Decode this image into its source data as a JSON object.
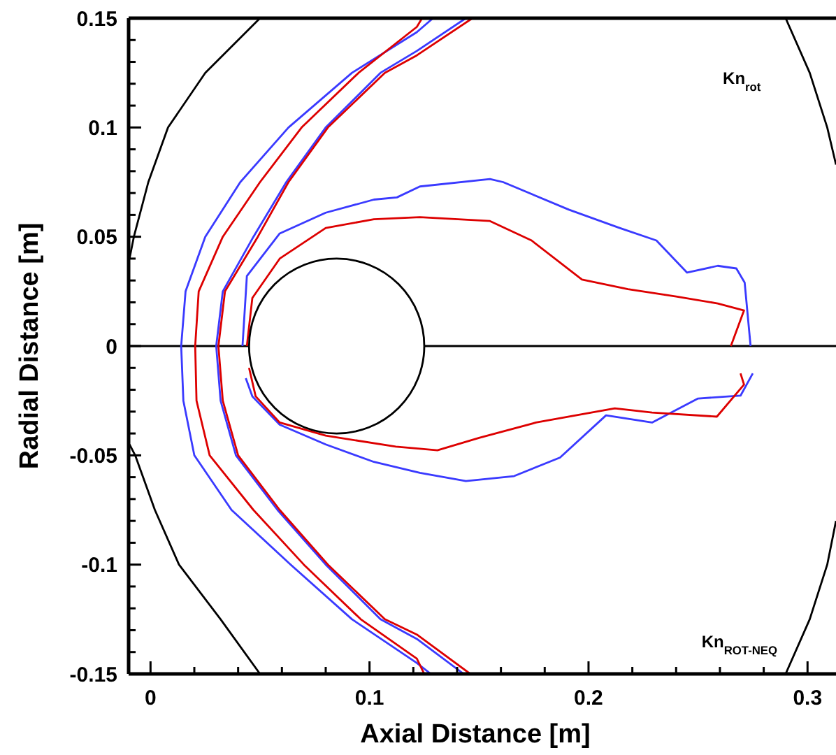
{
  "chart_data": {
    "type": "line",
    "xlabel": "Axial Distance [m]",
    "ylabel": "Radial Distance [m]",
    "xlim": [
      -0.01,
      0.313
    ],
    "ylim": [
      -0.15,
      0.15
    ],
    "xticks": [
      0,
      {
        "value": 0.02,
        "label": null
      },
      {
        "value": 0.04,
        "label": null
      },
      {
        "value": 0.06,
        "label": null
      },
      {
        "value": 0.08,
        "label": null
      },
      0.1,
      {
        "value": 0.12,
        "label": null
      },
      {
        "value": 0.14,
        "label": null
      },
      {
        "value": 0.16,
        "label": null
      },
      {
        "value": 0.18,
        "label": null
      },
      0.2,
      {
        "value": 0.22,
        "label": null
      },
      {
        "value": 0.24,
        "label": null
      },
      {
        "value": 0.26,
        "label": null
      },
      {
        "value": 0.28,
        "label": null
      },
      0.3
    ],
    "yticks": [
      -0.15,
      {
        "value": -0.14,
        "label": null
      },
      {
        "value": -0.13,
        "label": null
      },
      {
        "value": -0.12,
        "label": null
      },
      {
        "value": -0.11,
        "label": null
      },
      -0.1,
      {
        "value": -0.09,
        "label": null
      },
      {
        "value": -0.08,
        "label": null
      },
      {
        "value": -0.07,
        "label": null
      },
      {
        "value": -0.06,
        "label": null
      },
      -0.05,
      {
        "value": -0.04,
        "label": null
      },
      {
        "value": -0.03,
        "label": null
      },
      {
        "value": -0.02,
        "label": null
      },
      {
        "value": -0.01,
        "label": null
      },
      0,
      {
        "value": 0.01,
        "label": null
      },
      {
        "value": 0.02,
        "label": null
      },
      {
        "value": 0.03,
        "label": null
      },
      {
        "value": 0.04,
        "label": null
      },
      0.05,
      {
        "value": 0.06,
        "label": null
      },
      {
        "value": 0.07,
        "label": null
      },
      {
        "value": 0.08,
        "label": null
      },
      {
        "value": 0.09,
        "label": null
      },
      0.1,
      {
        "value": 0.11,
        "label": null
      },
      {
        "value": 0.12,
        "label": null
      },
      {
        "value": 0.13,
        "label": null
      },
      {
        "value": 0.14,
        "label": null
      },
      0.15
    ],
    "grid": false,
    "marker": "none",
    "line_style": "solid",
    "annotations": [
      "Kn$_{rot}$",
      "Kn$_{ROT-NEQ}$"
    ],
    "series": [
      {
        "color": "#000000",
        "x": [
          0.05,
          0.025,
          0.008,
          -0.001,
          -0.0076,
          -0.0096
        ],
        "values": [
          0.15,
          0.125,
          0.1,
          0.075,
          0.05,
          0.04
        ]
      },
      {
        "color": "#000000",
        "x": [
          -0.0096,
          -0.007,
          0.002,
          0.013,
          0.032,
          0.05
        ],
        "values": [
          -0.045,
          -0.05,
          -0.075,
          -0.1,
          -0.125,
          -0.15
        ]
      },
      {
        "color": "#000000",
        "x": [
          0.29,
          0.301,
          0.309,
          0.313
        ],
        "values": [
          0.15,
          0.125,
          0.1,
          0.083
        ]
      },
      {
        "color": "#000000",
        "x": [
          0.313,
          0.309,
          0.301,
          0.29
        ],
        "values": [
          -0.08,
          -0.1,
          -0.125,
          -0.15
        ]
      },
      {
        "color": "#000000",
        "x": [
          -0.01,
          0.045,
          0.085,
          0.125,
          0.313
        ],
        "values": [
          0,
          0,
          null,
          0,
          0
        ]
      },
      {
        "color": "#3a3aff",
        "x": [
          0.129,
          0.1216,
          0.092,
          0.063,
          0.041,
          0.025,
          0.016,
          0.014,
          0.015,
          0.02,
          0.037,
          0.064,
          0.092,
          0.1216,
          0.128
        ],
        "values": [
          0.15,
          0.1436,
          0.125,
          0.1,
          0.075,
          0.05,
          0.025,
          0,
          -0.025,
          -0.05,
          -0.075,
          -0.1,
          -0.125,
          -0.145,
          -0.15
        ]
      },
      {
        "color": "#dd0000",
        "x": [
          0.124,
          0.1216,
          0.095,
          0.069,
          0.05,
          0.033,
          0.022,
          0.0204,
          0.021,
          0.027,
          0.047,
          0.07,
          0.096,
          0.1216,
          0.125
        ],
        "values": [
          0.15,
          0.146,
          0.125,
          0.1,
          0.075,
          0.05,
          0.025,
          0,
          -0.025,
          -0.05,
          -0.075,
          -0.1,
          -0.125,
          -0.143,
          -0.15
        ]
      },
      {
        "color": "#3a3aff",
        "x": [
          0.144,
          0.1216,
          0.105,
          0.08,
          0.062,
          0.047,
          0.033,
          0.03,
          0.032,
          0.039,
          0.058,
          0.08,
          0.105,
          0.1216,
          0.143
        ],
        "values": [
          0.15,
          0.135,
          0.125,
          0.1,
          0.075,
          0.05,
          0.025,
          0,
          -0.025,
          -0.05,
          -0.075,
          -0.1,
          -0.125,
          -0.134,
          -0.15
        ]
      },
      {
        "color": "#dd0000",
        "x": [
          0.147,
          0.1216,
          0.107,
          0.081,
          0.063,
          0.049,
          0.034,
          0.031,
          0.033,
          0.04,
          0.059,
          0.081,
          0.107,
          0.1216,
          0.146
        ],
        "values": [
          0.15,
          0.133,
          0.125,
          0.1,
          0.075,
          0.05,
          0.025,
          0,
          -0.025,
          -0.05,
          -0.075,
          -0.1,
          -0.125,
          -0.132,
          -0.15
        ]
      },
      {
        "color": "#3a3aff",
        "x": [
          0.042,
          0.044,
          0.059,
          0.08,
          0.102,
          0.1125,
          0.123,
          0.155,
          0.161,
          0.191,
          0.214,
          0.231,
          0.245,
          0.259,
          0.2675,
          0.2713,
          0.274
        ],
        "values": [
          0,
          0.032,
          0.0515,
          0.061,
          0.067,
          0.068,
          0.073,
          0.0764,
          0.075,
          0.0624,
          0.0541,
          0.0483,
          0.0336,
          0.0367,
          0.0355,
          0.029,
          0
        ]
      },
      {
        "color": "#3a3aff",
        "x": [
          0.0435,
          0.0465,
          0.059,
          0.08,
          0.102,
          0.123,
          0.144,
          0.166,
          0.187,
          0.208,
          0.229,
          0.25,
          0.2694,
          0.275
        ],
        "values": [
          -0.0147,
          -0.023,
          -0.036,
          -0.045,
          -0.053,
          -0.058,
          -0.0618,
          -0.0595,
          -0.051,
          -0.0317,
          -0.035,
          -0.024,
          -0.0227,
          -0.0125
        ]
      },
      {
        "color": "#dd0000",
        "x": [
          0.044,
          0.0465,
          0.059,
          0.08,
          0.102,
          0.123,
          0.155,
          0.174,
          0.197,
          0.218,
          0.24,
          0.259,
          0.271,
          0.265
        ],
        "values": [
          0,
          0.022,
          0.04,
          0.054,
          0.058,
          0.059,
          0.0572,
          0.0483,
          0.0304,
          0.026,
          0.0227,
          0.0195,
          0.0163,
          0
        ]
      },
      {
        "color": "#dd0000",
        "x": [
          0.045,
          0.048,
          0.059,
          0.08,
          0.112,
          0.123,
          0.131,
          0.15,
          0.176,
          0.212,
          0.229,
          0.2586,
          0.271,
          0.2694
        ],
        "values": [
          -0.01,
          -0.023,
          -0.035,
          -0.041,
          -0.046,
          -0.047,
          -0.0477,
          -0.042,
          -0.035,
          -0.0285,
          -0.0304,
          -0.0323,
          -0.0176,
          -0.0125
        ]
      }
    ]
  }
}
